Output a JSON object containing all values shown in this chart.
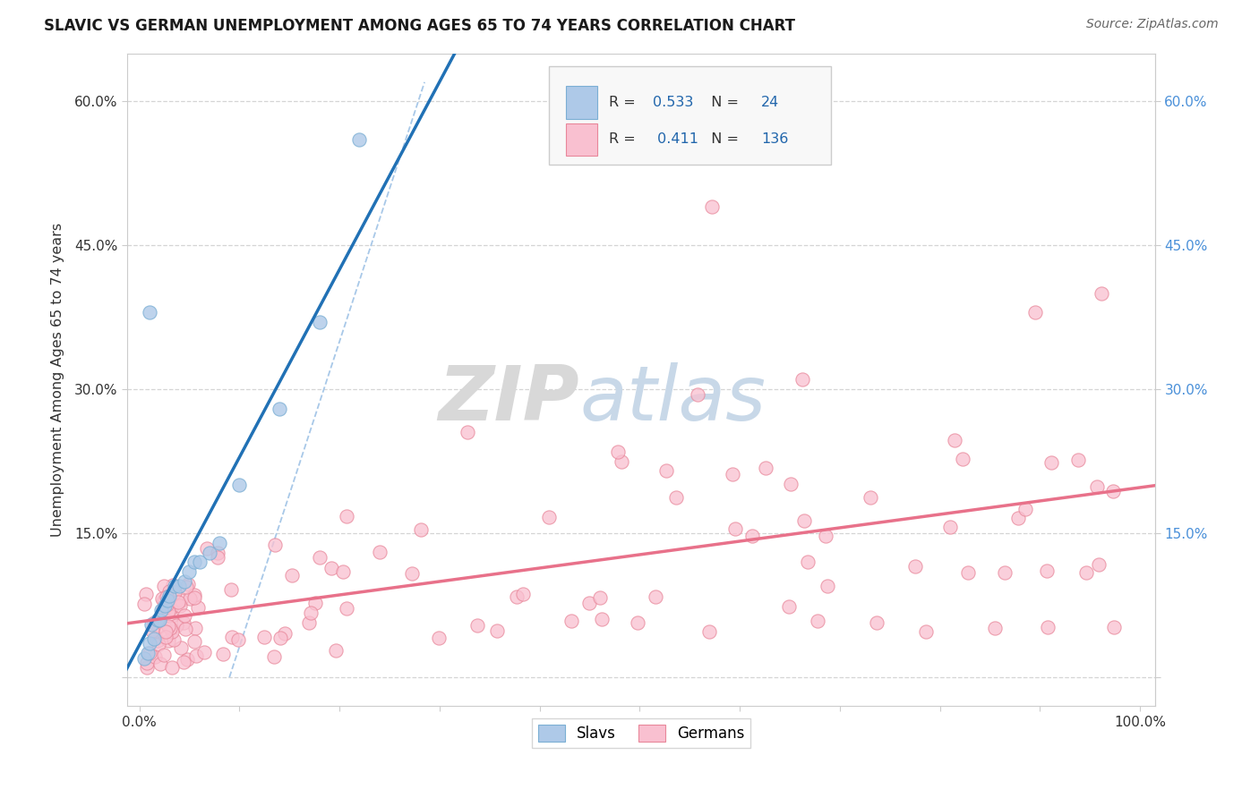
{
  "title": "SLAVIC VS GERMAN UNEMPLOYMENT AMONG AGES 65 TO 74 YEARS CORRELATION CHART",
  "source": "Source: ZipAtlas.com",
  "ylabel": "Unemployment Among Ages 65 to 74 years",
  "xlim": [
    -0.012,
    1.015
  ],
  "ylim": [
    -0.03,
    0.65
  ],
  "slavs_R": 0.533,
  "slavs_N": 24,
  "germans_R": 0.411,
  "germans_N": 136,
  "slav_color": "#aec9e8",
  "german_color": "#f9c0d0",
  "slav_edge": "#7bafd4",
  "german_edge": "#e8879a",
  "slav_line_color": "#2171b5",
  "german_line_color": "#e8718a",
  "ref_line_color": "#a8c8e8",
  "background_color": "#ffffff",
  "right_tick_color": "#4a90d9",
  "number_color": "#2166ac",
  "legend_box_color": "#f5f5f5"
}
